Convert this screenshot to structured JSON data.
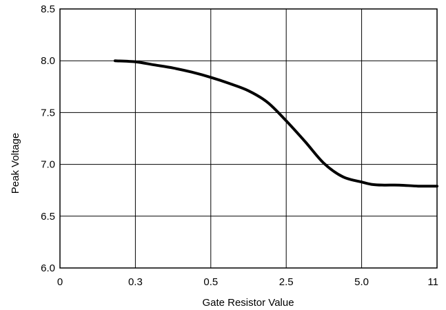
{
  "chart_data": {
    "type": "line",
    "xlabel": "Gate Resistor Value",
    "ylabel": "Peak Voltage",
    "x_ticks": [
      "0",
      "0.3",
      "0.5",
      "2.5",
      "5.0",
      "11"
    ],
    "y_ticks": [
      "6.0",
      "6.5",
      "7.0",
      "7.5",
      "8.0",
      "8.5"
    ],
    "ylim": [
      6.0,
      8.5
    ],
    "grid": true,
    "x_scale": "categorical-equal-spacing",
    "series": [
      {
        "color": "#000000",
        "x_positions": [
          0.73,
          1.0,
          1.25,
          1.5,
          1.75,
          2.0,
          2.25,
          2.5,
          2.75,
          3.0,
          3.25,
          3.5,
          3.75,
          4.0,
          4.15,
          4.3,
          4.5,
          4.75,
          5.0
        ],
        "values": [
          8.0,
          7.99,
          7.96,
          7.93,
          7.89,
          7.84,
          7.78,
          7.71,
          7.6,
          7.42,
          7.22,
          7.01,
          6.88,
          6.83,
          6.805,
          6.8,
          6.8,
          6.79,
          6.79
        ]
      }
    ]
  }
}
